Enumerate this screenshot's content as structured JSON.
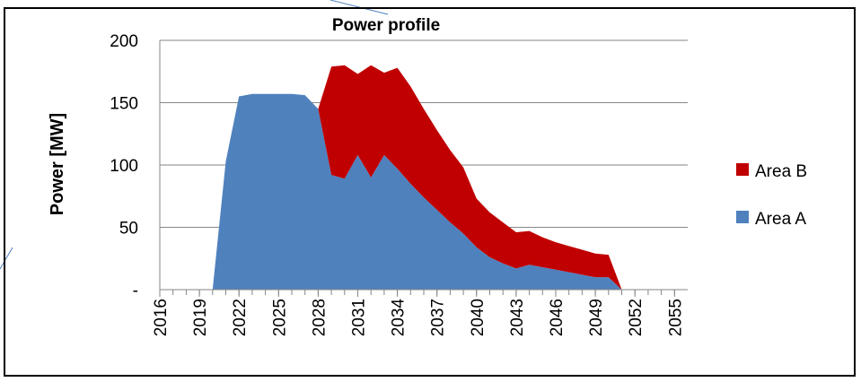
{
  "chart_data": {
    "type": "area",
    "stacked": true,
    "title": "Power profile",
    "y_label": "Power [MW]",
    "x": [
      2016,
      2017,
      2018,
      2019,
      2020,
      2021,
      2022,
      2023,
      2024,
      2025,
      2026,
      2027,
      2028,
      2029,
      2030,
      2031,
      2032,
      2033,
      2034,
      2035,
      2036,
      2037,
      2038,
      2039,
      2040,
      2041,
      2042,
      2043,
      2044,
      2045,
      2046,
      2047,
      2048,
      2049,
      2050,
      2051,
      2052,
      2053,
      2054,
      2055
    ],
    "series": [
      {
        "name": "Area A",
        "color": "#4f81bd",
        "values": [
          0,
          0,
          0,
          0,
          0,
          103,
          155,
          157,
          157,
          157,
          157,
          156,
          145,
          92,
          89,
          108,
          90,
          108,
          97,
          85,
          74,
          64,
          54,
          45,
          34,
          26,
          21,
          17,
          20,
          18,
          16,
          14,
          12,
          10,
          10,
          0,
          0,
          0,
          0,
          0
        ]
      },
      {
        "name": "Area B",
        "color": "#c00000",
        "values": [
          0,
          0,
          0,
          0,
          0,
          0,
          0,
          0,
          0,
          0,
          0,
          0,
          0,
          87,
          91,
          65,
          90,
          66,
          81,
          78,
          71,
          64,
          58,
          53,
          39,
          36,
          33,
          29,
          27,
          24,
          22,
          21,
          20,
          19,
          18,
          0,
          0,
          0,
          0,
          0
        ]
      }
    ],
    "xlim": [
      2016,
      2056
    ],
    "xticks": [
      2016,
      2019,
      2022,
      2025,
      2028,
      2031,
      2034,
      2037,
      2040,
      2043,
      2046,
      2049,
      2052,
      2055
    ],
    "ylim": [
      0,
      200
    ],
    "yticks": [
      {
        "value": 0,
        "label": "-"
      },
      50,
      100,
      150,
      200
    ],
    "grid": true,
    "legend": "right"
  }
}
